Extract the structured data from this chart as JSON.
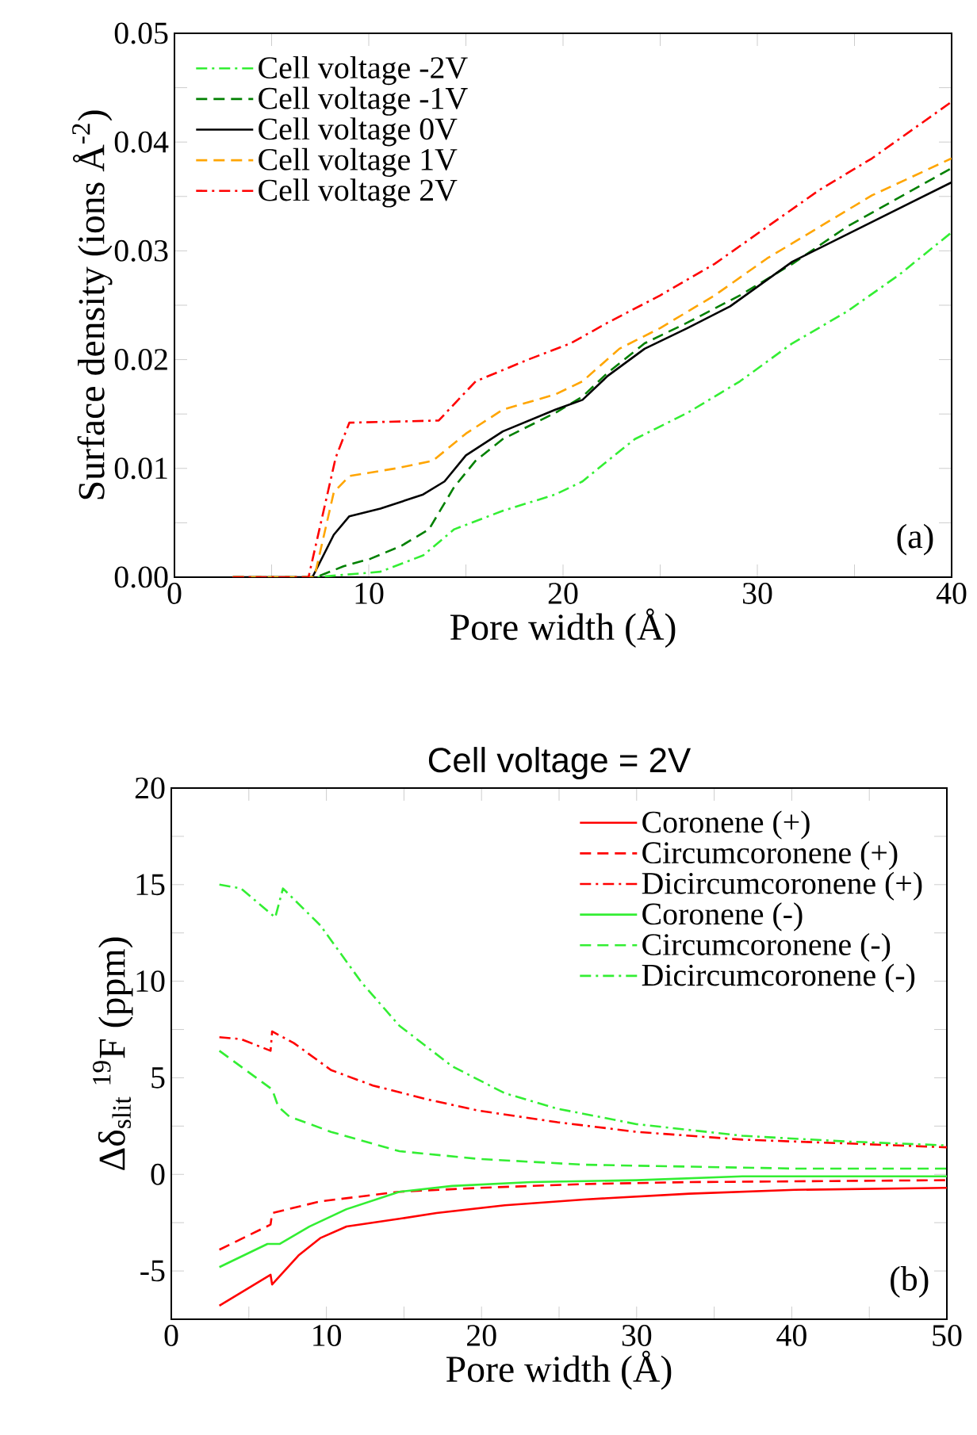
{
  "chart_data": [
    {
      "type": "line",
      "xlabel": "Pore width (Å)",
      "ylabel": "Surface density (ions Å$^{-2}$)",
      "legend": "top left",
      "annotations": [
        "(a)"
      ],
      "xlim": [
        0,
        40
      ],
      "ylim": [
        0,
        0.05
      ],
      "xticks": [
        0,
        {
          "value": 5,
          "label": null
        },
        10,
        {
          "value": 15,
          "label": null
        },
        20,
        {
          "value": 25,
          "label": null
        },
        30,
        {
          "value": 35,
          "label": null
        },
        40
      ],
      "yticks": [
        {
          "value": 0,
          "label": "0.00"
        },
        {
          "value": 0.005,
          "label": null
        },
        {
          "value": 0.01,
          "label": "0.01"
        },
        {
          "value": 0.015,
          "label": null
        },
        {
          "value": 0.02,
          "label": "0.02"
        },
        {
          "value": 0.025,
          "label": null
        },
        {
          "value": 0.03,
          "label": "0.03"
        },
        {
          "value": 0.035,
          "label": null
        },
        {
          "value": 0.04,
          "label": "0.04"
        },
        {
          "value": 0.045,
          "label": null
        },
        {
          "value": 0.05,
          "label": "0.05"
        }
      ],
      "series": [
        {
          "name": "Cell voltage -2V",
          "color": "#33ee33",
          "line_style": "dashdot",
          "x": [
            3,
            7.3,
            10.6,
            12.8,
            14.4,
            16.9,
            19.6,
            21,
            22.3,
            23.7,
            26.4,
            29.1,
            31.8,
            34.6,
            37.3,
            40
          ],
          "values": [
            0,
            0,
            0.0005,
            0.002,
            0.0044,
            0.0061,
            0.0076,
            0.0088,
            0.0107,
            0.0127,
            0.0151,
            0.018,
            0.0215,
            0.0244,
            0.0278,
            0.0317
          ]
        },
        {
          "name": "Cell voltage -1V",
          "color": "#008000",
          "line_style": "dashed",
          "x": [
            3,
            7.3,
            8.7,
            10.1,
            11.7,
            13.1,
            14.4,
            15.5,
            16.9,
            19.6,
            21,
            22.3,
            24.2,
            26.4,
            29.1,
            31.8,
            34.6,
            40
          ],
          "values": [
            0,
            0,
            0.001,
            0.0017,
            0.0029,
            0.0044,
            0.0083,
            0.0107,
            0.0127,
            0.0151,
            0.0166,
            0.0188,
            0.0215,
            0.0234,
            0.0259,
            0.0288,
            0.0322,
            0.0376
          ]
        },
        {
          "name": "Cell voltage  0V",
          "color": "#000000",
          "line_style": "solid",
          "x": [
            3,
            7.1,
            8.2,
            9,
            10.6,
            12.8,
            13.9,
            15,
            16.9,
            19.6,
            21,
            22.3,
            24.2,
            26.4,
            28.6,
            31.8,
            34.6,
            40
          ],
          "values": [
            0,
            0,
            0.0039,
            0.0056,
            0.0063,
            0.0076,
            0.0088,
            0.0112,
            0.0134,
            0.0154,
            0.0163,
            0.0185,
            0.021,
            0.0229,
            0.0249,
            0.029,
            0.0315,
            0.0363
          ]
        },
        {
          "name": "Cell voltage  1V",
          "color": "#ffa500",
          "line_style": "dashed",
          "x": [
            3,
            7.2,
            8.2,
            9,
            11.4,
            13.3,
            15,
            16.9,
            19.6,
            21,
            22.9,
            25,
            27.8,
            30.5,
            33.2,
            35.9,
            40
          ],
          "values": [
            0,
            0,
            0.0078,
            0.0093,
            0.01,
            0.0107,
            0.0132,
            0.0154,
            0.0168,
            0.018,
            0.021,
            0.0229,
            0.0259,
            0.0293,
            0.0322,
            0.0351,
            0.0385
          ]
        },
        {
          "name": "Cell voltage  2V",
          "color": "#ff0000",
          "line_style": "dashdot",
          "x": [
            3,
            6.9,
            8.3,
            9,
            13.6,
            15.5,
            18.2,
            20.4,
            22.3,
            25,
            27.8,
            30.5,
            33.2,
            35.9,
            40
          ],
          "values": [
            0,
            0,
            0.011,
            0.0142,
            0.0144,
            0.018,
            0.02,
            0.0215,
            0.0234,
            0.0259,
            0.0288,
            0.0322,
            0.0356,
            0.0385,
            0.0437
          ]
        }
      ]
    },
    {
      "type": "line",
      "title": "Cell voltage = 2V",
      "xlabel": "Pore width (Å)",
      "ylabel": "Δδ$_{slit}$ $^{19}$F (ppm)",
      "legend": "top right",
      "annotations": [
        "(b)"
      ],
      "xlim": [
        0,
        50
      ],
      "ylim": [
        -7.5,
        20
      ],
      "xticks": [
        0,
        {
          "value": 5,
          "label": null
        },
        10,
        {
          "value": 15,
          "label": null
        },
        20,
        {
          "value": 25,
          "label": null
        },
        30,
        {
          "value": 35,
          "label": null
        },
        40,
        {
          "value": 45,
          "label": null
        },
        50
      ],
      "yticks": [
        {
          "value": -7.5,
          "label": null
        },
        -5,
        {
          "value": -2.5,
          "label": null
        },
        0,
        {
          "value": 2.5,
          "label": null
        },
        5,
        {
          "value": 7.5,
          "label": null
        },
        10,
        {
          "value": 12.5,
          "label": null
        },
        15,
        {
          "value": 17.5,
          "label": null
        },
        20
      ],
      "series": [
        {
          "name": "Coronene (+)",
          "color": "#ff0000",
          "line_style": "solid",
          "x": [
            3.1,
            6.4,
            6.5,
            8.2,
            9.6,
            11.3,
            14.7,
            17.1,
            21.5,
            26.6,
            33.4,
            40.2,
            50
          ],
          "values": [
            -6.8,
            -5.2,
            -5.7,
            -4.2,
            -3.3,
            -2.7,
            -2.3,
            -2.0,
            -1.6,
            -1.3,
            -1.0,
            -0.8,
            -0.7
          ]
        },
        {
          "name": "Circumcoronene (+)",
          "color": "#ff0000",
          "line_style": "dashed",
          "x": [
            3.1,
            6.4,
            6.5,
            9.6,
            14.7,
            19.8,
            26.6,
            33.4,
            50
          ],
          "values": [
            -3.9,
            -2.6,
            -2.0,
            -1.4,
            -0.9,
            -0.7,
            -0.5,
            -0.4,
            -0.3
          ]
        },
        {
          "name": "Dicircumcoronene (+)",
          "color": "#ff0000",
          "line_style": "dashdot",
          "x": [
            3.1,
            4.5,
            6.4,
            6.5,
            7.9,
            10.3,
            13,
            16.4,
            19.8,
            24.9,
            30,
            36.8,
            43.6,
            50
          ],
          "values": [
            7.1,
            7.0,
            6.4,
            7.4,
            6.8,
            5.4,
            4.6,
            3.9,
            3.3,
            2.7,
            2.2,
            1.8,
            1.6,
            1.4
          ]
        },
        {
          "name": "Coronene (-)",
          "color": "#33ee33",
          "line_style": "solid",
          "x": [
            3.1,
            6.2,
            7.0,
            8.9,
            11.3,
            14.7,
            18.1,
            23.2,
            30,
            36.8,
            50
          ],
          "values": [
            -4.8,
            -3.6,
            -3.6,
            -2.7,
            -1.8,
            -0.9,
            -0.6,
            -0.4,
            -0.3,
            -0.1,
            -0.1
          ]
        },
        {
          "name": "Circumcoronene (-)",
          "color": "#33ee33",
          "line_style": "dashed",
          "x": [
            3.1,
            6.5,
            6.9,
            7.6,
            10.3,
            14.7,
            19.8,
            26.6,
            33.4,
            40.2,
            50
          ],
          "values": [
            6.4,
            4.4,
            3.5,
            3.0,
            2.2,
            1.2,
            0.8,
            0.5,
            0.4,
            0.3,
            0.3
          ]
        },
        {
          "name": "Dicircumcoronene (-)",
          "color": "#33ee33",
          "line_style": "dashdot",
          "x": [
            3.1,
            4.5,
            6.7,
            7.2,
            9.6,
            12.3,
            14.7,
            18.1,
            21.5,
            24.9,
            30,
            36.8,
            43.6,
            50
          ],
          "values": [
            15.0,
            14.8,
            13.3,
            14.8,
            12.9,
            9.9,
            7.7,
            5.6,
            4.2,
            3.4,
            2.6,
            2.0,
            1.7,
            1.5
          ]
        }
      ]
    }
  ]
}
